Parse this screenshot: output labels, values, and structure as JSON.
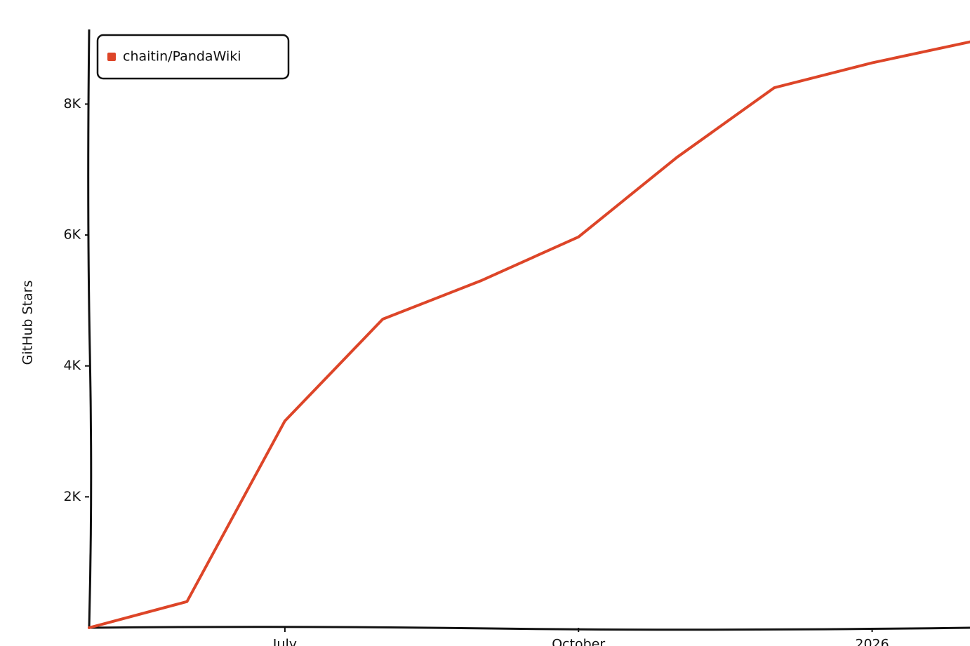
{
  "chart_data": {
    "type": "line",
    "y_label": "GitHub Stars",
    "x": [
      "2025-05",
      "2025-06",
      "2025-07",
      "2025-08",
      "2025-09",
      "2025-10",
      "2025-11",
      "2025-12",
      "2026-01",
      "2026-02"
    ],
    "series": [
      {
        "name": "chaitin/PandaWiki",
        "color": "#dd4528",
        "values": [
          0,
          400,
          3160,
          4715,
          5300,
          5970,
          7180,
          8250,
          8630,
          8950
        ]
      }
    ],
    "xlim": [
      "2025-05",
      "2026-02"
    ],
    "xticks": [
      {
        "value": "2025-07",
        "label": "July"
      },
      {
        "value": "2025-10",
        "label": "October"
      },
      {
        "value": "2026-01",
        "label": "2026"
      }
    ],
    "ylim": [
      0,
      9140
    ],
    "yticks": [
      {
        "value": 2000,
        "label": "2K"
      },
      {
        "value": 4000,
        "label": "4K"
      },
      {
        "value": 6000,
        "label": "6K"
      },
      {
        "value": 8000,
        "label": "8K"
      }
    ],
    "legend": "top-left",
    "grid": false
  }
}
